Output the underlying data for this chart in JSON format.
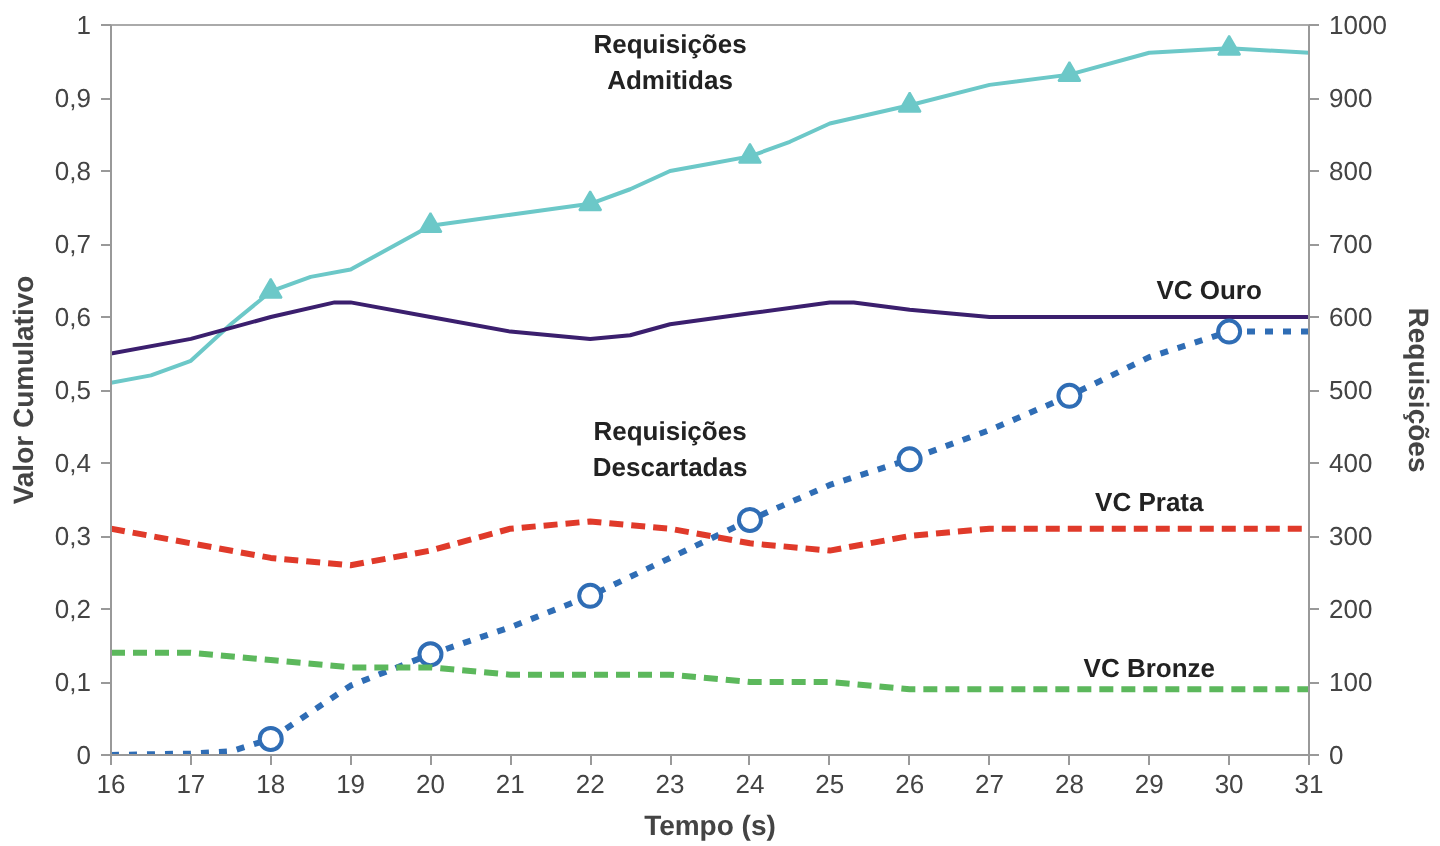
{
  "chart_data": {
    "type": "line",
    "xlabel": "Tempo (s)",
    "ylabel": "Valor Cumulativo",
    "y2label": "Requisições",
    "xlim": [
      16,
      31
    ],
    "xticks": [
      16,
      17,
      18,
      19,
      20,
      21,
      22,
      23,
      24,
      25,
      26,
      27,
      28,
      29,
      30,
      31
    ],
    "ylim": [
      0,
      1
    ],
    "yticks": [
      0,
      {
        "value": 0.1,
        "label": "0,1"
      },
      {
        "value": 0.2,
        "label": "0,2"
      },
      {
        "value": 0.3,
        "label": "0,3"
      },
      {
        "value": 0.4,
        "label": "0,4"
      },
      {
        "value": 0.5,
        "label": "0,5"
      },
      {
        "value": 0.6,
        "label": "0,6"
      },
      {
        "value": 0.7,
        "label": "0,7"
      },
      {
        "value": 0.8,
        "label": "0,8"
      },
      {
        "value": 0.9,
        "label": "0,9"
      },
      1
    ],
    "y2lim": [
      0,
      1000
    ],
    "y2ticks": [
      0,
      100,
      200,
      300,
      400,
      500,
      600,
      700,
      800,
      900,
      1000
    ],
    "grid": false,
    "marker": "none",
    "series": [
      {
        "name": "Requisições Admitidas",
        "color": "#6cc8c8",
        "axis": "y2",
        "line_style": "solid",
        "x": [
          16,
          16.5,
          17,
          17.5,
          18,
          18.5,
          19,
          20,
          21,
          22,
          22.5,
          23,
          23.5,
          24,
          24.5,
          25,
          26,
          27,
          28,
          29,
          30,
          31
        ],
        "values": [
          510,
          520,
          540,
          590,
          635,
          655,
          665,
          725,
          740,
          755,
          775,
          800,
          810,
          820,
          840,
          865,
          890,
          918,
          932,
          962,
          968,
          962
        ]
      },
      {
        "type": "scatter",
        "color": "#6cc8c8",
        "axis": "y2",
        "marker": "triangle",
        "x": [
          18,
          20,
          22,
          24,
          26,
          28,
          30
        ],
        "values": [
          635,
          725,
          755,
          820,
          890,
          932,
          968
        ]
      },
      {
        "name": "VC Ouro",
        "color": "#3b1f6e",
        "line_style": "solid",
        "x": [
          16,
          17,
          18,
          18.8,
          19,
          20,
          21,
          22,
          22.5,
          23,
          24,
          25,
          25.3,
          26,
          27,
          28,
          29,
          30,
          31
        ],
        "values": [
          0.55,
          0.57,
          0.6,
          0.62,
          0.62,
          0.6,
          0.58,
          0.57,
          0.575,
          0.59,
          0.605,
          0.62,
          0.62,
          0.61,
          0.6,
          0.6,
          0.6,
          0.6,
          0.6
        ]
      },
      {
        "name": "Requisições Descartadas",
        "color": "#2f6db5",
        "axis": "y2",
        "line_style": "dotted",
        "x": [
          16,
          17,
          17.5,
          18,
          19,
          20,
          21,
          22,
          23,
          24,
          25,
          26,
          27,
          28,
          29,
          30,
          31
        ],
        "values": [
          0,
          2,
          5,
          22,
          95,
          138,
          175,
          218,
          270,
          322,
          370,
          405,
          445,
          492,
          545,
          580,
          580
        ]
      },
      {
        "type": "scatter",
        "color": "#2f6db5",
        "axis": "y2",
        "marker": "circle",
        "x": [
          18,
          20,
          22,
          24,
          26,
          28,
          30
        ],
        "values": [
          22,
          138,
          218,
          322,
          405,
          492,
          580
        ]
      },
      {
        "name": "VC Prata",
        "color": "#e03a2a",
        "line_style": "dashed",
        "x": [
          16,
          17,
          18,
          19,
          20,
          21,
          22,
          23,
          24,
          25,
          26,
          27,
          28,
          29,
          30,
          31
        ],
        "values": [
          0.31,
          0.29,
          0.27,
          0.26,
          0.28,
          0.31,
          0.32,
          0.31,
          0.29,
          0.28,
          0.3,
          0.31,
          0.31,
          0.31,
          0.31,
          0.31
        ]
      },
      {
        "name": "VC Bronze",
        "color": "#5cb85c",
        "line_style": "dashed",
        "x": [
          16,
          17,
          18,
          19,
          20,
          21,
          22,
          23,
          24,
          25,
          26,
          27,
          28,
          29,
          30,
          31
        ],
        "values": [
          0.14,
          0.14,
          0.13,
          0.12,
          0.12,
          0.11,
          0.11,
          0.11,
          0.1,
          0.1,
          0.09,
          0.09,
          0.09,
          0.09,
          0.09,
          0.09
        ]
      }
    ]
  }
}
